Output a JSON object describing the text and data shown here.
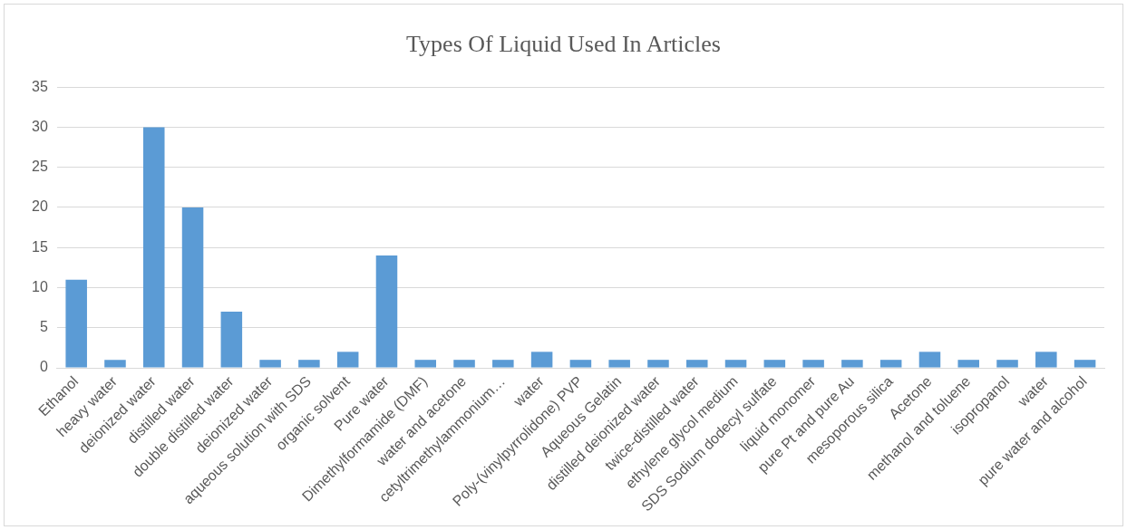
{
  "chart_data": {
    "type": "bar",
    "title": "Types Of Liquid Used In Articles",
    "categories": [
      "Ethanol",
      "heavy water",
      "deionized water",
      "distilled water",
      "double distilled water",
      "deionized water",
      "aqueous solution with SDS",
      "organic solvent",
      "Pure water",
      "Dimethylformamide (DMF)",
      "water and acetone",
      "cetyltrimethylammonium…",
      "water",
      "Poly-(vinylpyrrolidone) PVP",
      "Aqueous Gelatin",
      "distilled deionized water",
      "twice-distilled water",
      "ethylene glycol medium",
      "SDS Sodium dodecyl sulfate",
      "liquid monomer",
      "pure Pt and pure Au",
      "mesoporous silica",
      "Acetone",
      "methanol and toluene",
      "isopropanol",
      "water",
      "pure water and alcohol"
    ],
    "values": [
      11,
      1,
      30,
      20,
      7,
      1,
      1,
      2,
      14,
      1,
      1,
      1,
      2,
      1,
      1,
      1,
      1,
      1,
      1,
      1,
      1,
      1,
      2,
      1,
      1,
      2,
      1
    ],
    "color": "#5b9bd5",
    "ylim": [
      0,
      35
    ],
    "yticks": [
      0,
      5,
      10,
      15,
      20,
      25,
      30,
      35
    ],
    "grid": "y",
    "legend": false
  }
}
